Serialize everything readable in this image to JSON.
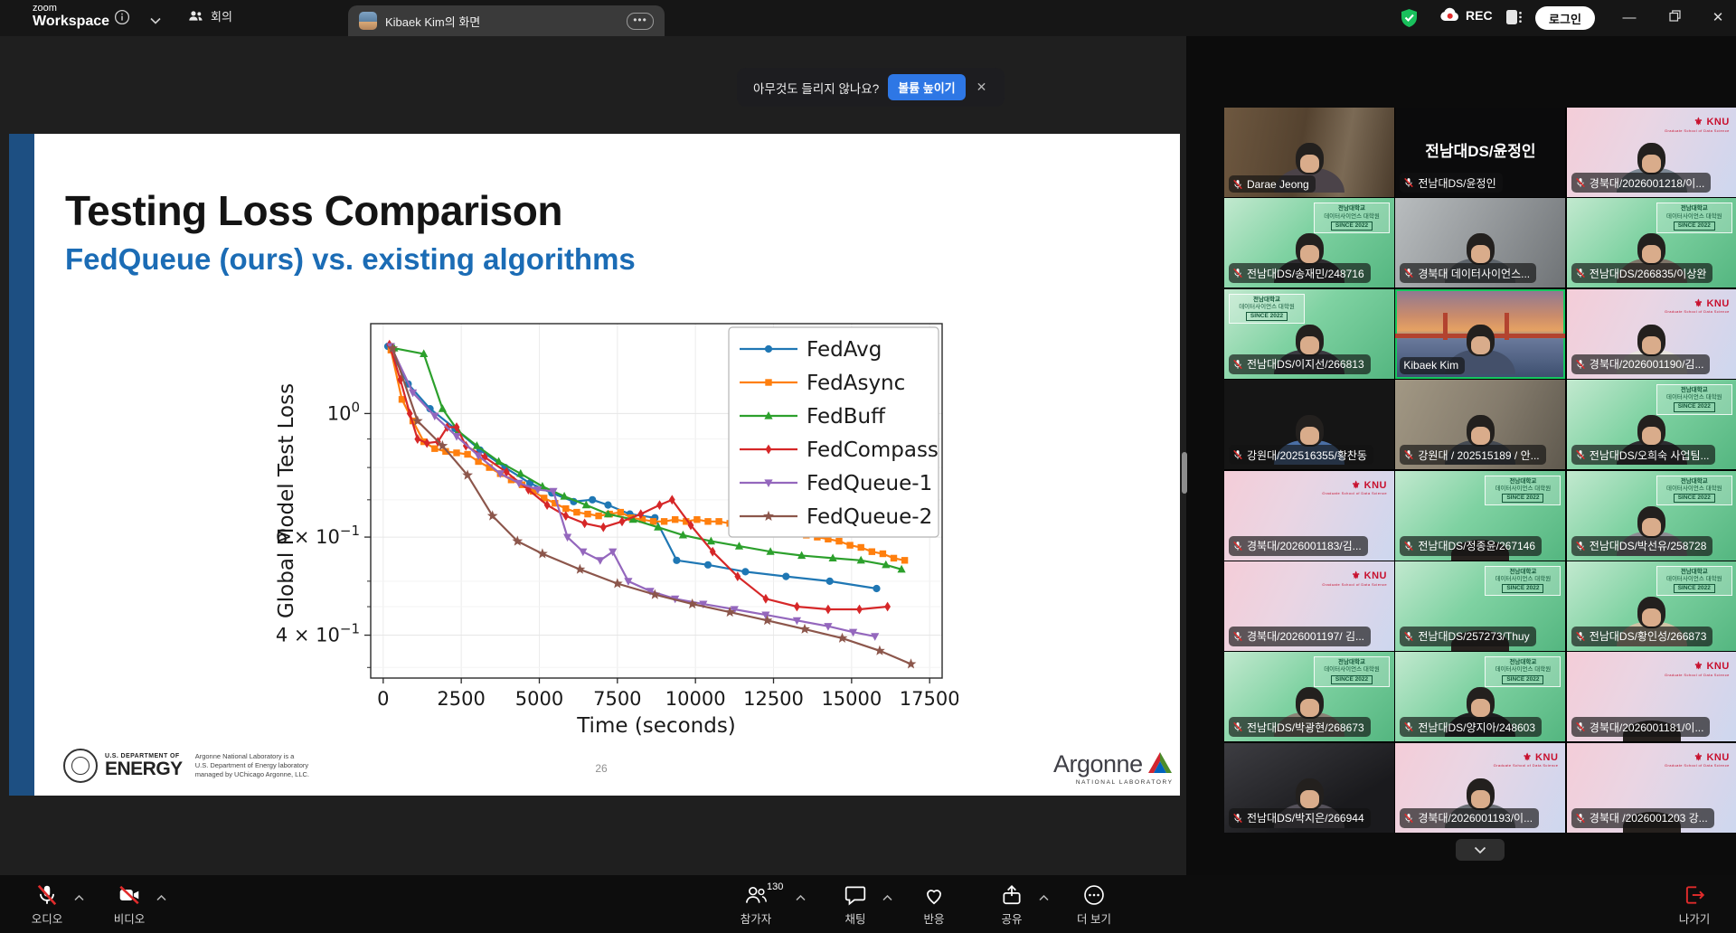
{
  "titlebar": {
    "logo_top": "zoom",
    "logo_bottom": "Workspace",
    "meeting_tab": "회의",
    "screen_tab": "Kibaek Kim의 화면",
    "rec_label": "REC",
    "login_label": "로그인"
  },
  "banner": {
    "message": "아무것도 들리지 않나요?",
    "action": "볼륨 높이기"
  },
  "slide": {
    "title": "Testing Loss Comparison",
    "subtitle": "FedQueue (ours) vs. existing algorithms",
    "page_number": "26",
    "doe": {
      "dept": "U.S. DEPARTMENT OF",
      "energy": "ENERGY",
      "caption1": "Argonne National Laboratory is a",
      "caption2": "U.S. Department of Energy laboratory",
      "caption3": "managed by UChicago Argonne, LLC."
    },
    "argonne": {
      "name": "Argonne",
      "sub": "NATIONAL LABORATORY"
    }
  },
  "chart_data": {
    "type": "line",
    "title": "",
    "xlabel": "Time (seconds)",
    "ylabel": "Global Model Test Loss",
    "yscale": "log",
    "grid": true,
    "legend_position": "upper right",
    "xlim": [
      -400,
      17900
    ],
    "ylim": [
      0.335,
      1.45
    ],
    "xticks": [
      0,
      2500,
      5000,
      7500,
      10000,
      12500,
      15000,
      17500
    ],
    "yticks": [
      {
        "v": 1.0,
        "base": "10",
        "exp": "0"
      },
      {
        "v": 0.6,
        "base": "6 × 10",
        "exp": "−1"
      },
      {
        "v": 0.4,
        "base": "4 × 10",
        "exp": "−1"
      }
    ],
    "yticks_minor": [
      0.9,
      0.8,
      0.7,
      0.5,
      0.45,
      0.35
    ],
    "series": [
      {
        "name": "FedAvg",
        "color": "#1f77b4",
        "marker": "circle",
        "points": [
          [
            150,
            1.32
          ],
          [
            800,
            1.13
          ],
          [
            1500,
            1.02
          ],
          [
            2300,
            0.94
          ],
          [
            3100,
            0.86
          ],
          [
            3900,
            0.8
          ],
          [
            4700,
            0.75
          ],
          [
            5400,
            0.72
          ],
          [
            6100,
            0.695
          ],
          [
            6700,
            0.7
          ],
          [
            7200,
            0.685
          ],
          [
            7900,
            0.66
          ],
          [
            8700,
            0.65
          ],
          [
            9400,
            0.545
          ],
          [
            10400,
            0.535
          ],
          [
            11600,
            0.52
          ],
          [
            12900,
            0.51
          ],
          [
            14300,
            0.5
          ],
          [
            15800,
            0.485
          ]
        ]
      },
      {
        "name": "FedAsync",
        "color": "#ff7f0e",
        "marker": "square",
        "points": [
          [
            250,
            1.3
          ],
          [
            600,
            1.06
          ],
          [
            950,
            0.97
          ],
          [
            1300,
            0.89
          ],
          [
            1650,
            0.865
          ],
          [
            2000,
            0.855
          ],
          [
            2350,
            0.85
          ],
          [
            2700,
            0.845
          ],
          [
            3050,
            0.82
          ],
          [
            3400,
            0.8
          ],
          [
            3750,
            0.78
          ],
          [
            4100,
            0.76
          ],
          [
            4450,
            0.745
          ],
          [
            4800,
            0.725
          ],
          [
            5150,
            0.705
          ],
          [
            5500,
            0.69
          ],
          [
            5850,
            0.675
          ],
          [
            6200,
            0.665
          ],
          [
            6550,
            0.66
          ],
          [
            6900,
            0.655
          ],
          [
            7250,
            0.66
          ],
          [
            7600,
            0.665
          ],
          [
            7950,
            0.65
          ],
          [
            8300,
            0.645
          ],
          [
            8650,
            0.64
          ],
          [
            9000,
            0.64
          ],
          [
            9350,
            0.645
          ],
          [
            9700,
            0.64
          ],
          [
            10050,
            0.645
          ],
          [
            10400,
            0.64
          ],
          [
            10750,
            0.64
          ],
          [
            11100,
            0.635
          ],
          [
            11450,
            0.63
          ],
          [
            11800,
            0.63
          ],
          [
            12150,
            0.625
          ],
          [
            12500,
            0.62
          ],
          [
            12850,
            0.615
          ],
          [
            13200,
            0.61
          ],
          [
            13550,
            0.605
          ],
          [
            13900,
            0.6
          ],
          [
            14250,
            0.595
          ],
          [
            14600,
            0.59
          ],
          [
            14950,
            0.58
          ],
          [
            15300,
            0.575
          ],
          [
            15650,
            0.565
          ],
          [
            16000,
            0.56
          ],
          [
            16350,
            0.55
          ],
          [
            16700,
            0.545
          ]
        ]
      },
      {
        "name": "FedBuff",
        "color": "#2ca02c",
        "marker": "triangle-up",
        "points": [
          [
            350,
            1.31
          ],
          [
            1300,
            1.28
          ],
          [
            1900,
            1.02
          ],
          [
            2400,
            0.93
          ],
          [
            3000,
            0.875
          ],
          [
            3700,
            0.82
          ],
          [
            4400,
            0.78
          ],
          [
            5100,
            0.74
          ],
          [
            5800,
            0.71
          ],
          [
            6500,
            0.685
          ],
          [
            7200,
            0.66
          ],
          [
            8000,
            0.645
          ],
          [
            8800,
            0.625
          ],
          [
            9600,
            0.605
          ],
          [
            10500,
            0.59
          ],
          [
            11400,
            0.578
          ],
          [
            12400,
            0.565
          ],
          [
            13400,
            0.556
          ],
          [
            14400,
            0.55
          ],
          [
            15300,
            0.545
          ],
          [
            16100,
            0.535
          ],
          [
            16600,
            0.525
          ]
        ]
      },
      {
        "name": "FedCompass",
        "color": "#d62728",
        "marker": "diamond",
        "points": [
          [
            200,
            1.33
          ],
          [
            550,
            1.15
          ],
          [
            850,
            1.0
          ],
          [
            1100,
            0.9
          ],
          [
            1400,
            0.885
          ],
          [
            1750,
            0.89
          ],
          [
            2050,
            0.945
          ],
          [
            2350,
            0.945
          ],
          [
            2650,
            0.875
          ],
          [
            3250,
            0.835
          ],
          [
            3950,
            0.785
          ],
          [
            4650,
            0.73
          ],
          [
            5250,
            0.685
          ],
          [
            5850,
            0.655
          ],
          [
            6450,
            0.635
          ],
          [
            7050,
            0.625
          ],
          [
            7650,
            0.64
          ],
          [
            8250,
            0.66
          ],
          [
            8850,
            0.685
          ],
          [
            9250,
            0.7
          ],
          [
            9850,
            0.63
          ],
          [
            10550,
            0.565
          ],
          [
            11350,
            0.51
          ],
          [
            12250,
            0.465
          ],
          [
            13250,
            0.45
          ],
          [
            14250,
            0.445
          ],
          [
            15250,
            0.445
          ],
          [
            16150,
            0.45
          ]
        ]
      },
      {
        "name": "FedQueue-1",
        "color": "#9467bd",
        "marker": "triangle-down",
        "points": [
          [
            250,
            1.32
          ],
          [
            950,
            1.09
          ],
          [
            1650,
            0.99
          ],
          [
            2350,
            0.91
          ],
          [
            3050,
            0.84
          ],
          [
            3750,
            0.78
          ],
          [
            4350,
            0.75
          ],
          [
            4950,
            0.73
          ],
          [
            5450,
            0.725
          ],
          [
            5900,
            0.6
          ],
          [
            6400,
            0.565
          ],
          [
            6950,
            0.545
          ],
          [
            7350,
            0.565
          ],
          [
            7850,
            0.5
          ],
          [
            8550,
            0.48
          ],
          [
            9350,
            0.465
          ],
          [
            10250,
            0.455
          ],
          [
            11250,
            0.445
          ],
          [
            12250,
            0.435
          ],
          [
            13250,
            0.425
          ],
          [
            14250,
            0.415
          ],
          [
            15050,
            0.405
          ],
          [
            15750,
            0.398
          ]
        ]
      },
      {
        "name": "FedQueue-2",
        "color": "#8c564b",
        "marker": "star",
        "points": [
          [
            300,
            1.31
          ],
          [
            1100,
            0.97
          ],
          [
            1900,
            0.875
          ],
          [
            2700,
            0.775
          ],
          [
            3500,
            0.655
          ],
          [
            4300,
            0.59
          ],
          [
            5100,
            0.56
          ],
          [
            6300,
            0.525
          ],
          [
            7500,
            0.495
          ],
          [
            8700,
            0.473
          ],
          [
            9900,
            0.455
          ],
          [
            11100,
            0.44
          ],
          [
            12300,
            0.425
          ],
          [
            13500,
            0.41
          ],
          [
            14700,
            0.395
          ],
          [
            15900,
            0.375
          ],
          [
            16900,
            0.355
          ]
        ]
      }
    ]
  },
  "gallery": {
    "badge": {
      "line1": "전남대학교",
      "line2": "데이터사이언스 대학원",
      "line3": "SINCE 2022"
    },
    "knu": {
      "main": "KNU",
      "sub": "Graduate School of Data Science"
    },
    "participants": [
      {
        "name": "Darae Jeong",
        "bg": "office",
        "muted": true,
        "person": "bust",
        "shirt": "#4b4349"
      },
      {
        "name": "전남대DS/윤정인",
        "bg": "black",
        "muted": true,
        "person": "none",
        "center_text": "전남대DS/윤정인"
      },
      {
        "name": "경북대/2026001218/이...",
        "bg": "knu",
        "muted": true,
        "person": "bust",
        "knu": true,
        "shirt": "#7c8894"
      },
      {
        "name": "전남대DS/송재민/248716",
        "bg": "green",
        "muted": true,
        "person": "bust",
        "badge": true,
        "shirt": "#2e2c30"
      },
      {
        "name": "경북대 데이터사이언스...",
        "bg": "officeblur",
        "muted": true,
        "person": "bust",
        "shirt": "#5d646b"
      },
      {
        "name": "전남대DS/266835/이상완",
        "bg": "green",
        "muted": true,
        "person": "bust",
        "badge": true,
        "shirt": "#7e7468"
      },
      {
        "name": "전남대DS/이지선/266813",
        "bg": "green",
        "muted": true,
        "person": "bust",
        "badge": true,
        "badge_pos": "left",
        "shirt": "#3a3a40"
      },
      {
        "name": "Kibaek Kim",
        "bg": "bridge",
        "muted": false,
        "active": true,
        "person": "bust",
        "shirt": "#44506a"
      },
      {
        "name": "경북대/2026001190/김...",
        "bg": "knu",
        "muted": true,
        "person": "bust",
        "knu": true,
        "shirt": "#e8e4de"
      },
      {
        "name": "강원대/202516355/황찬동",
        "bg": "beige",
        "muted": true,
        "person": "bust",
        "shirt": "#4a6fa5"
      },
      {
        "name": "강원대 / 202515189 / 안...",
        "bg": "desk",
        "muted": true,
        "person": "bust",
        "shirt": "#454a52"
      },
      {
        "name": "전남대DS/오희숙 사업팀...",
        "bg": "green",
        "muted": true,
        "person": "bust",
        "badge": true,
        "shirt": "#2c2c30"
      },
      {
        "name": "경북대/2026001183/김...",
        "bg": "knu",
        "muted": true,
        "person": "none",
        "knu": true
      },
      {
        "name": "전남대DS/정종윤/267146",
        "bg": "green",
        "muted": true,
        "person": "headtop",
        "badge": true
      },
      {
        "name": "전남대DS/박선유/258728",
        "bg": "green",
        "muted": true,
        "person": "bust",
        "badge": true,
        "shirt": "#8d8d93"
      },
      {
        "name": "경북대/2026001197/ 김...",
        "bg": "knu",
        "muted": true,
        "person": "none",
        "knu": true
      },
      {
        "name": "전남대DS/257273/Thuy",
        "bg": "green",
        "muted": true,
        "person": "headtop",
        "badge": true
      },
      {
        "name": "전남대DS/황인성/266873",
        "bg": "green",
        "muted": true,
        "person": "bust",
        "badge": true,
        "shirt": "#cfc4a6"
      },
      {
        "name": "전남대DS/박광현/268673",
        "bg": "green",
        "muted": true,
        "person": "bust",
        "badge": true,
        "shirt": "#8a8376"
      },
      {
        "name": "전남대DS/양지아/248603",
        "bg": "green",
        "muted": true,
        "person": "bust",
        "badge": true,
        "shirt": "#1e1e20"
      },
      {
        "name": "경북대/2026001181/이...",
        "bg": "knu",
        "muted": true,
        "person": "headtop",
        "knu": true
      },
      {
        "name": "전남대DS/박지은/266944",
        "bg": "dark",
        "muted": true,
        "person": "bust",
        "shirt": "#55515a"
      },
      {
        "name": "경북대/2026001193/이...",
        "bg": "knu",
        "muted": true,
        "person": "bust",
        "knu": true,
        "shirt": "#6b6f76"
      },
      {
        "name": "경북대 /2026001203 강...",
        "bg": "knu",
        "muted": true,
        "person": "headtop",
        "knu": true
      }
    ]
  },
  "toolbar": {
    "audio": {
      "label": "오디오"
    },
    "video": {
      "label": "비디오"
    },
    "participants": {
      "label": "참가자",
      "count": "130"
    },
    "chat": {
      "label": "채팅"
    },
    "reactions": {
      "label": "반응"
    },
    "share": {
      "label": "공유"
    },
    "more": {
      "label": "더 보기"
    },
    "leave": {
      "label": "나가기"
    }
  }
}
